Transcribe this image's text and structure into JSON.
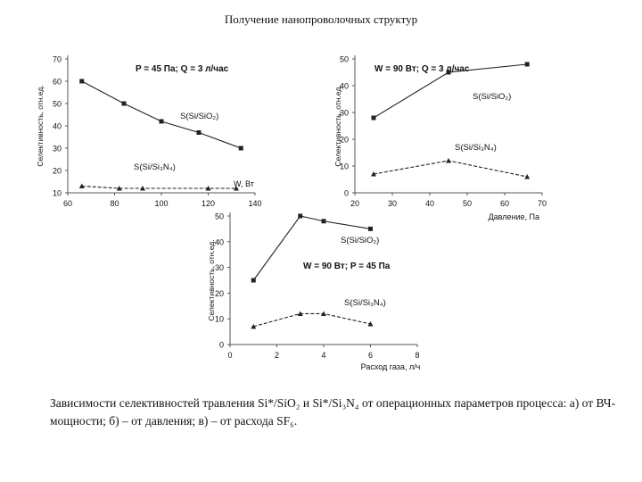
{
  "slide": {
    "title": "Получение нанопроволочных структур",
    "caption": "Зависимости селективностей травления Si*/SiO₂ и Si*/Si₃N₄ от операционных параметров процесса: а) от ВЧ-мощности; б) – от давления; в) – от расхода SF₆."
  },
  "chart_data": [
    {
      "type": "line",
      "subtitle": "P = 45 Па; Q = 3 л/час",
      "xlabel": "W, Вт",
      "ylabel": "Селективность, отн.ед.",
      "xlim": [
        60,
        140
      ],
      "ylim": [
        10,
        70
      ],
      "x_ticks": [
        "60",
        "80",
        "100",
        "120",
        "140"
      ],
      "y_ticks": [
        "10",
        "20",
        "30",
        "40",
        "50",
        "60",
        "70"
      ],
      "series": [
        {
          "name": "S(Si/SiO₂)",
          "x": [
            66,
            84,
            100,
            116,
            134
          ],
          "values": [
            60,
            50,
            42,
            37,
            30
          ]
        },
        {
          "name": "S(Si/Si₃N₄)",
          "x": [
            66,
            82,
            92,
            120,
            132
          ],
          "values": [
            13,
            12,
            12,
            12,
            12
          ]
        }
      ]
    },
    {
      "type": "line",
      "subtitle": "W = 90 Вт; Q = 3 л/час",
      "xlabel": "Давление, Па",
      "ylabel": "Селективность, отн.ед.",
      "xlim": [
        20,
        70
      ],
      "ylim": [
        0,
        50
      ],
      "x_ticks": [
        "20",
        "30",
        "40",
        "50",
        "60",
        "70"
      ],
      "y_ticks": [
        "0",
        "10",
        "20",
        "30",
        "40",
        "50"
      ],
      "series": [
        {
          "name": "S(Si/SiO₂)",
          "x": [
            25,
            45,
            66
          ],
          "values": [
            28,
            45,
            48
          ]
        },
        {
          "name": "S(Si/Si₃N₄)",
          "x": [
            25,
            45,
            66
          ],
          "values": [
            7,
            12,
            6
          ]
        }
      ]
    },
    {
      "type": "line",
      "subtitle": "W = 90 Вт; P = 45 Па",
      "xlabel": "Расход газа, л/ч",
      "ylabel": "Селективность, отн.ед.",
      "xlim": [
        0,
        8
      ],
      "ylim": [
        0,
        50
      ],
      "x_ticks": [
        "0",
        "2",
        "4",
        "6",
        "8"
      ],
      "y_ticks": [
        "0",
        "10",
        "20",
        "30",
        "40",
        "50"
      ],
      "series": [
        {
          "name": "S(Si/SiO₂)",
          "x": [
            1,
            3,
            4,
            6
          ],
          "values": [
            25,
            50,
            48,
            45
          ]
        },
        {
          "name": "S(Si/Si₃N₄)",
          "x": [
            1,
            3,
            4,
            6
          ],
          "values": [
            7,
            12,
            12,
            8
          ]
        }
      ]
    }
  ]
}
